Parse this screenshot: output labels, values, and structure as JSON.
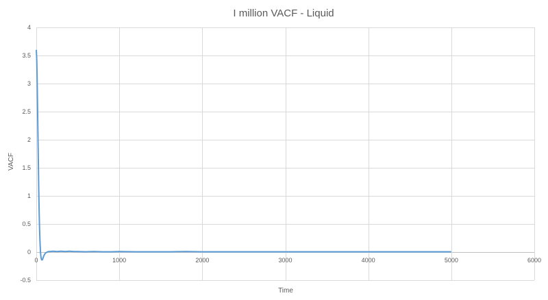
{
  "chart_data": {
    "type": "line",
    "title": "I million VACF - Liquid",
    "xlabel": "Time",
    "ylabel": "VACF",
    "xlim": [
      0,
      6000
    ],
    "ylim": [
      -0.5,
      4
    ],
    "x_ticks": [
      0,
      1000,
      2000,
      3000,
      4000,
      5000,
      6000
    ],
    "y_ticks": [
      -0.5,
      0,
      0.5,
      1,
      1.5,
      2,
      2.5,
      3,
      3.5,
      4
    ],
    "x_tick_labels": [
      "0",
      "1000",
      "2000",
      "3000",
      "4000",
      "5000",
      "6000"
    ],
    "y_tick_labels": [
      "-0.5",
      "0",
      "0.5",
      "1",
      "1.5",
      "2",
      "2.5",
      "3",
      "3.5",
      "4"
    ],
    "grid": true,
    "legend": "none",
    "series_color": "#5b9bd5",
    "series": [
      {
        "x": [
          0,
          5,
          10,
          15,
          20,
          25,
          30,
          35,
          40,
          45,
          50,
          55,
          60,
          65,
          70,
          75,
          80,
          85,
          90,
          100,
          110,
          120,
          130,
          140,
          150,
          170,
          200,
          250,
          300,
          350,
          400,
          450,
          500,
          600,
          700,
          800,
          900,
          1000,
          1200,
          1400,
          1600,
          1800,
          2000,
          2200,
          2400,
          2600,
          2800,
          3000,
          3200,
          3400,
          3600,
          3800,
          4000,
          4200,
          4400,
          4600,
          4800,
          5000
        ],
        "values": [
          3.6,
          3.45,
          3.1,
          2.6,
          2.1,
          1.6,
          1.1,
          0.7,
          0.4,
          0.15,
          0.0,
          -0.08,
          -0.12,
          -0.14,
          -0.14,
          -0.13,
          -0.11,
          -0.09,
          -0.07,
          -0.04,
          -0.02,
          -0.01,
          0.0,
          0.005,
          0.01,
          0.01,
          0.015,
          0.01,
          0.015,
          0.01,
          0.015,
          0.01,
          0.01,
          0.005,
          0.01,
          0.005,
          0.005,
          0.01,
          0.005,
          0.005,
          0.005,
          0.01,
          0.005,
          0.005,
          0.005,
          0.005,
          0.005,
          0.005,
          0.005,
          0.005,
          0.005,
          0.005,
          0.005,
          0.005,
          0.005,
          0.005,
          0.005,
          0.005
        ]
      }
    ]
  }
}
